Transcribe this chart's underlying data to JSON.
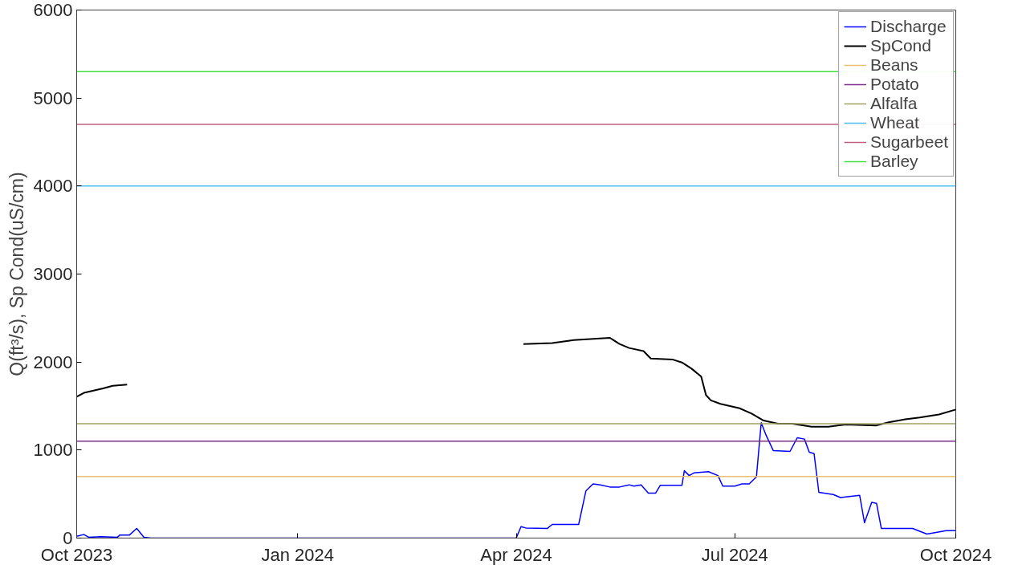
{
  "chart_data": {
    "type": "line",
    "ylabel": "Q(ft³/s), Sp Cond(uS/cm)",
    "xlim": [
      "2023-10-01",
      "2024-10-01"
    ],
    "xticks": [
      {
        "value": "2023-10-01",
        "label": "Oct 2023"
      },
      {
        "value": "2024-01-01",
        "label": "Jan 2024"
      },
      {
        "value": "2024-04-01",
        "label": "Apr 2024"
      },
      {
        "value": "2024-07-01",
        "label": "Jul 2024"
      },
      {
        "value": "2024-10-01",
        "label": "Oct 2024"
      }
    ],
    "ylim": [
      0,
      6000
    ],
    "yticks": [
      0,
      1000,
      2000,
      3000,
      4000,
      5000,
      6000
    ],
    "grid": false,
    "legend": "top right",
    "line_style": "solid",
    "series": [
      {
        "name": "Discharge",
        "color": "#0000ff",
        "x": [
          "2023-10-01",
          "2023-10-04",
          "2023-10-06",
          "2023-10-11",
          "2023-10-18",
          "2023-10-19",
          "2023-10-23",
          "2023-10-26",
          "2023-10-29",
          "2023-11-01",
          "2024-04-01",
          "2024-04-03",
          "2024-04-05",
          "2024-04-14",
          "2024-04-16",
          "2024-04-27",
          "2024-04-30",
          "2024-05-03",
          "2024-05-06",
          "2024-05-10",
          "2024-05-14",
          "2024-05-18",
          "2024-05-20",
          "2024-05-23",
          "2024-05-26",
          "2024-05-29",
          "2024-05-31",
          "2024-06-09",
          "2024-06-10",
          "2024-06-12",
          "2024-06-14",
          "2024-06-20",
          "2024-06-24",
          "2024-06-26",
          "2024-07-01",
          "2024-07-04",
          "2024-07-07",
          "2024-07-10",
          "2024-07-12",
          "2024-07-14",
          "2024-07-17",
          "2024-07-24",
          "2024-07-27",
          "2024-07-30",
          "2024-08-01",
          "2024-08-03",
          "2024-08-05",
          "2024-08-11",
          "2024-08-14",
          "2024-08-22",
          "2024-08-24",
          "2024-08-27",
          "2024-08-29",
          "2024-08-31",
          "2024-09-13",
          "2024-09-19",
          "2024-09-27",
          "2024-10-01"
        ],
        "values": [
          20,
          40,
          10,
          15,
          10,
          35,
          35,
          110,
          10,
          0,
          0,
          130,
          115,
          110,
          155,
          155,
          535,
          615,
          605,
          580,
          580,
          605,
          590,
          605,
          510,
          510,
          600,
          600,
          765,
          710,
          740,
          755,
          710,
          590,
          590,
          615,
          615,
          695,
          1310,
          1170,
          995,
          985,
          1140,
          1125,
          975,
          960,
          520,
          495,
          460,
          485,
          175,
          405,
          395,
          110,
          110,
          45,
          85,
          85
        ]
      },
      {
        "name": "SpCond",
        "color": "#000000",
        "x": [
          "2023-10-01",
          "2023-10-04",
          "2023-10-12",
          "2023-10-16",
          "2023-10-22",
          "2023-11-01",
          "2024-04-04",
          "2024-04-16",
          "2024-04-25",
          "2024-05-10",
          "2024-05-14",
          "2024-05-18",
          "2024-05-24",
          "2024-05-27",
          "2024-06-05",
          "2024-06-09",
          "2024-06-13",
          "2024-06-17",
          "2024-06-19",
          "2024-06-21",
          "2024-06-25",
          "2024-07-03",
          "2024-07-08",
          "2024-07-13",
          "2024-07-19",
          "2024-07-25",
          "2024-08-02",
          "2024-08-09",
          "2024-08-16",
          "2024-08-29",
          "2024-09-03",
          "2024-09-10",
          "2024-09-16",
          "2024-09-24",
          "2024-10-01"
        ],
        "values": [
          1605,
          1650,
          1700,
          1730,
          1745,
          null,
          2205,
          2215,
          2250,
          2275,
          2205,
          2160,
          2125,
          2040,
          2030,
          1995,
          1925,
          1835,
          1625,
          1565,
          1525,
          1475,
          1415,
          1335,
          1300,
          1300,
          1265,
          1265,
          1290,
          1280,
          1315,
          1350,
          1370,
          1405,
          1460
        ]
      },
      {
        "name": "Beans",
        "color": "#e8c070",
        "x": [
          "2023-10-01",
          "2024-10-01"
        ],
        "values": [
          700,
          700
        ]
      },
      {
        "name": "Potato",
        "color": "#7e2f8e",
        "x": [
          "2023-10-01",
          "2024-10-01"
        ],
        "values": [
          1100,
          1100
        ]
      },
      {
        "name": "Alfalfa",
        "color": "#a0a060",
        "x": [
          "2023-10-01",
          "2024-10-01"
        ],
        "values": [
          1300,
          1300
        ]
      },
      {
        "name": "Wheat",
        "color": "#4dbeee",
        "x": [
          "2023-10-01",
          "2024-10-01"
        ],
        "values": [
          4000,
          4000
        ]
      },
      {
        "name": "Sugarbeet",
        "color": "#c06080",
        "x": [
          "2023-10-01",
          "2024-10-01"
        ],
        "values": [
          4700,
          4700
        ]
      },
      {
        "name": "Barley",
        "color": "#40e040",
        "x": [
          "2023-10-01",
          "2024-10-01"
        ],
        "values": [
          5300,
          5300
        ]
      }
    ]
  }
}
